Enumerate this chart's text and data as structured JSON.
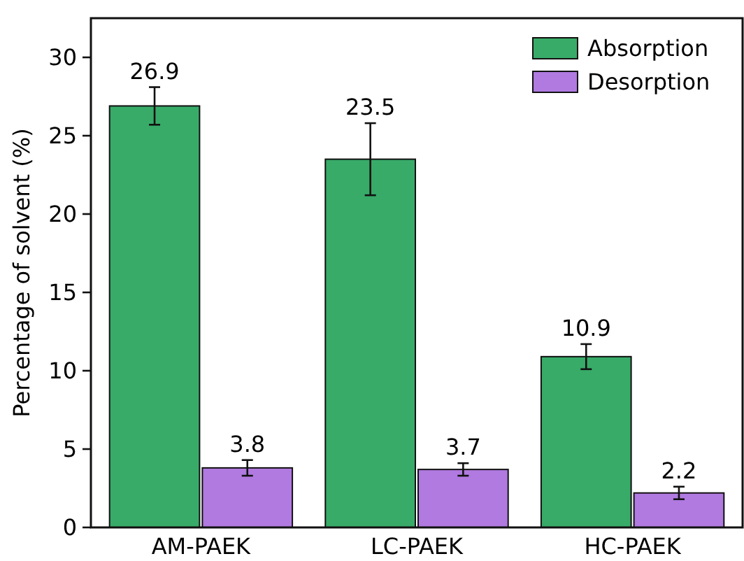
{
  "chart_data": {
    "type": "bar",
    "categories": [
      "AM-PAEK",
      "LC-PAEK",
      "HC-PAEK"
    ],
    "ylabel": "Percentage of solvent (%)",
    "ylim": [
      0,
      32.5
    ],
    "yticks": [
      0,
      5,
      10,
      15,
      20,
      25,
      30
    ],
    "legend": "top right",
    "grid": false,
    "data_labels": true,
    "series": [
      {
        "name": "Absorption",
        "color": "#38ab69",
        "values": [
          26.9,
          23.5,
          10.9
        ],
        "errors": [
          1.2,
          2.3,
          0.8
        ]
      },
      {
        "name": "Desorption",
        "color": "#b07ae0",
        "values": [
          3.8,
          3.7,
          2.2
        ],
        "errors": [
          0.5,
          0.4,
          0.4
        ]
      }
    ]
  }
}
